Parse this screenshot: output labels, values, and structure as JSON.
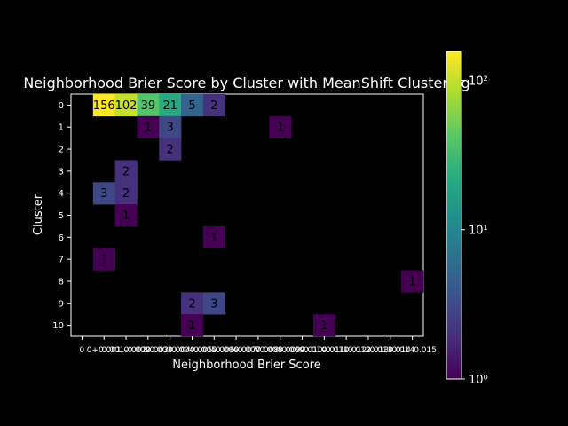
{
  "chart_data": {
    "type": "heatmap",
    "title": "Neighborhood Brier Score by Cluster with MeanShift Clustering",
    "xlabel": "Neighborhood Brier Score",
    "ylabel": "Cluster",
    "x_tick_labels": [
      "0",
      "0+0.001",
      "0.001-0.002",
      "0.002-0.003",
      "0.003-0.004",
      "0.004-0.005",
      "0.005-0.006",
      "0.006-0.007",
      "0.007-0.008",
      "0.008-0.009",
      "0.009-0.010",
      "0.010-0.011",
      "0.011-0.012",
      "0.012-0.013",
      "0.013-0.014",
      "0.014-0.015"
    ],
    "y_tick_labels": [
      "0",
      "1",
      "2",
      "3",
      "4",
      "5",
      "6",
      "7",
      "8",
      "9",
      "10"
    ],
    "cells": [
      {
        "row": 0,
        "col": 1,
        "value": 156
      },
      {
        "row": 0,
        "col": 2,
        "value": 102
      },
      {
        "row": 0,
        "col": 3,
        "value": 39
      },
      {
        "row": 0,
        "col": 4,
        "value": 21
      },
      {
        "row": 0,
        "col": 5,
        "value": 5
      },
      {
        "row": 0,
        "col": 6,
        "value": 2
      },
      {
        "row": 1,
        "col": 3,
        "value": 1
      },
      {
        "row": 1,
        "col": 4,
        "value": 3
      },
      {
        "row": 1,
        "col": 9,
        "value": 1
      },
      {
        "row": 2,
        "col": 4,
        "value": 2
      },
      {
        "row": 3,
        "col": 2,
        "value": 2
      },
      {
        "row": 4,
        "col": 1,
        "value": 3
      },
      {
        "row": 4,
        "col": 2,
        "value": 2
      },
      {
        "row": 5,
        "col": 2,
        "value": 1
      },
      {
        "row": 6,
        "col": 6,
        "value": 1
      },
      {
        "row": 7,
        "col": 1,
        "value": 1
      },
      {
        "row": 8,
        "col": 15,
        "value": 1
      },
      {
        "row": 9,
        "col": 5,
        "value": 2
      },
      {
        "row": 9,
        "col": 6,
        "value": 3
      },
      {
        "row": 10,
        "col": 5,
        "value": 1
      },
      {
        "row": 10,
        "col": 11,
        "value": 1
      }
    ],
    "colorbar": {
      "scale": "log",
      "colormap": "viridis",
      "range": [
        1,
        156
      ],
      "tick_labels": [
        "10⁰",
        "10¹",
        "10²"
      ]
    },
    "background": "#000000",
    "text_color": "#ffffff",
    "grid": false
  }
}
